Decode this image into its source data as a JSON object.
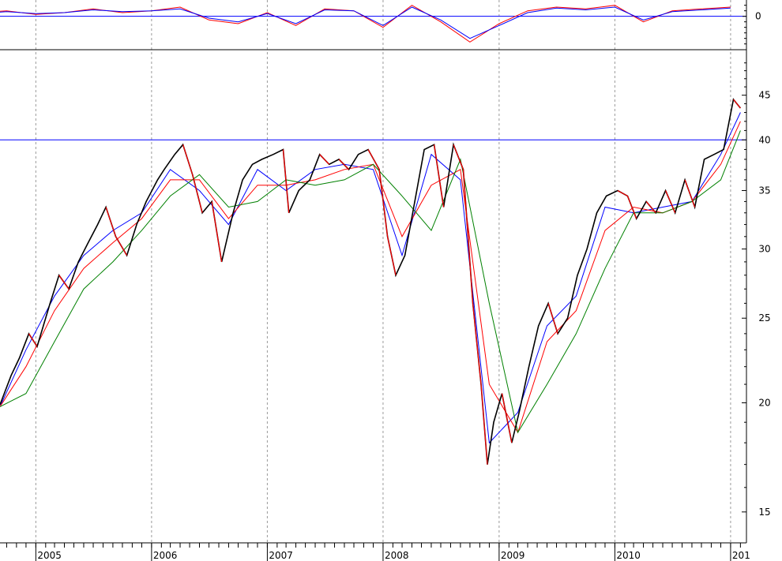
{
  "chart_data": [
    {
      "type": "line",
      "panel": "indicator",
      "title": "",
      "ylabel": "",
      "y_ticks": [
        0
      ],
      "y_tick_labels": [
        "0"
      ],
      "ylim": [
        -1.6,
        0.8
      ],
      "reference_line": 0,
      "series": [
        {
          "color": "#ff0000",
          "x": [
            "2004-07",
            "2004-10",
            "2005-01",
            "2005-04",
            "2005-07",
            "2005-10",
            "2006-01",
            "2006-04",
            "2006-07",
            "2006-10",
            "2007-01",
            "2007-04",
            "2007-07",
            "2007-10",
            "2008-01",
            "2008-04",
            "2008-07",
            "2008-10",
            "2009-01",
            "2009-04",
            "2009-07",
            "2009-10",
            "2010-01",
            "2010-04",
            "2010-07",
            "2010-10",
            "2011-01"
          ],
          "values": [
            0.2,
            0.3,
            0.1,
            0.2,
            0.4,
            0.2,
            0.3,
            0.5,
            -0.2,
            -0.4,
            0.2,
            -0.5,
            0.4,
            0.3,
            -0.6,
            0.6,
            -0.3,
            -1.4,
            -0.4,
            0.3,
            0.5,
            0.4,
            0.6,
            -0.3,
            0.3,
            0.4,
            0.5
          ]
        },
        {
          "color": "#0000ff",
          "x": [
            "2004-07",
            "2004-10",
            "2005-01",
            "2005-04",
            "2005-07",
            "2005-10",
            "2006-01",
            "2006-04",
            "2006-07",
            "2006-10",
            "2007-01",
            "2007-04",
            "2007-07",
            "2007-10",
            "2008-01",
            "2008-04",
            "2008-07",
            "2008-10",
            "2009-01",
            "2009-04",
            "2009-07",
            "2009-10",
            "2010-01",
            "2010-04",
            "2010-07",
            "2010-10",
            "2011-01"
          ],
          "values": [
            0.15,
            0.25,
            0.15,
            0.2,
            0.35,
            0.25,
            0.3,
            0.4,
            -0.1,
            -0.3,
            0.15,
            -0.4,
            0.35,
            0.3,
            -0.5,
            0.5,
            -0.2,
            -1.2,
            -0.5,
            0.2,
            0.45,
            0.35,
            0.5,
            -0.2,
            0.25,
            0.35,
            0.45
          ]
        }
      ]
    },
    {
      "type": "line",
      "panel": "price",
      "title": "",
      "xlabel": "",
      "ylabel": "",
      "y_scale": "log",
      "ylim": [
        14,
        50
      ],
      "y_ticks": [
        15,
        20,
        25,
        30,
        35,
        40,
        45
      ],
      "y_tick_labels": [
        "15",
        "20",
        "25",
        "30",
        "35",
        "40",
        "45"
      ],
      "x_tick_labels": [
        "2005",
        "2006",
        "2007",
        "2008",
        "2009",
        "2010",
        "201"
      ],
      "x_ticks": [
        "2005-01-01",
        "2006-01-01",
        "2007-01-01",
        "2008-01-01",
        "2009-01-01",
        "2010-01-01",
        "2011-01-01"
      ],
      "xlim": [
        "2004-09-10",
        "2011-02-20"
      ],
      "reference_line": 40,
      "grid": "vertical dashed at year boundaries",
      "series": [
        {
          "role": "price",
          "color": "#000000",
          "highlight_color": "#ff0000",
          "x": [
            "2004-09-10",
            "2004-10-15",
            "2004-11-10",
            "2004-12-10",
            "2005-01-05",
            "2005-02-15",
            "2005-03-15",
            "2005-04-15",
            "2005-05-15",
            "2005-06-15",
            "2005-07-15",
            "2005-08-10",
            "2005-09-10",
            "2005-10-15",
            "2005-11-15",
            "2005-12-15",
            "2006-01-20",
            "2006-02-10",
            "2006-03-15",
            "2006-04-10",
            "2006-05-10",
            "2006-06-10",
            "2006-07-10",
            "2006-08-10",
            "2006-09-15",
            "2006-10-15",
            "2006-11-15",
            "2006-12-15",
            "2007-01-20",
            "2007-02-20",
            "2007-03-10",
            "2007-04-10",
            "2007-05-15",
            "2007-06-15",
            "2007-07-15",
            "2007-08-15",
            "2007-09-15",
            "2007-10-15",
            "2007-11-15",
            "2007-12-20",
            "2008-01-15",
            "2008-02-10",
            "2008-03-10",
            "2008-04-10",
            "2008-05-10",
            "2008-06-10",
            "2008-07-10",
            "2008-08-10",
            "2008-09-10",
            "2008-10-10",
            "2008-11-05",
            "2008-11-25",
            "2008-12-15",
            "2009-01-10",
            "2009-02-10",
            "2009-03-05",
            "2009-04-05",
            "2009-05-05",
            "2009-06-05",
            "2009-07-05",
            "2009-08-05",
            "2009-09-05",
            "2009-10-05",
            "2009-11-05",
            "2009-12-05",
            "2010-01-10",
            "2010-02-10",
            "2010-03-10",
            "2010-04-10",
            "2010-05-10",
            "2010-06-10",
            "2010-07-10",
            "2010-08-10",
            "2010-09-10",
            "2010-10-10",
            "2010-11-10",
            "2010-12-10",
            "2011-01-10",
            "2011-02-01"
          ],
          "values": [
            19.9,
            21.5,
            22.5,
            24.0,
            23.2,
            26.0,
            28.0,
            27.0,
            29.0,
            30.5,
            32.0,
            33.5,
            31.0,
            29.5,
            32.0,
            34.0,
            36.0,
            37.0,
            38.5,
            39.5,
            36.5,
            33.0,
            34.0,
            29.0,
            33.0,
            36.0,
            37.5,
            38.0,
            38.5,
            39.0,
            33.0,
            35.0,
            36.0,
            38.5,
            37.5,
            38.0,
            37.0,
            38.5,
            39.0,
            37.0,
            31.0,
            28.0,
            29.5,
            34.0,
            39.0,
            39.5,
            33.5,
            39.5,
            37.0,
            26.0,
            21.0,
            17.0,
            19.0,
            20.5,
            18.0,
            19.5,
            22.0,
            24.5,
            26.0,
            24.0,
            25.0,
            28.0,
            30.0,
            33.0,
            34.5,
            35.0,
            34.5,
            32.5,
            34.0,
            33.0,
            35.0,
            33.0,
            36.0,
            33.5,
            38.0,
            38.5,
            39.0,
            44.5,
            43.5
          ]
        },
        {
          "role": "moving average",
          "color": "#0000ff",
          "x": [
            "2004-09-10",
            "2004-12-01",
            "2005-03-01",
            "2005-06-01",
            "2005-09-01",
            "2005-12-01",
            "2006-03-01",
            "2006-06-01",
            "2006-09-01",
            "2006-12-01",
            "2007-03-01",
            "2007-06-01",
            "2007-09-01",
            "2007-12-01",
            "2008-03-01",
            "2008-06-01",
            "2008-09-01",
            "2008-12-01",
            "2009-03-01",
            "2009-06-01",
            "2009-09-01",
            "2009-12-01",
            "2010-03-01",
            "2010-06-01",
            "2010-09-01",
            "2010-12-01",
            "2011-02-01"
          ],
          "values": [
            19.8,
            23.0,
            26.5,
            29.5,
            31.5,
            33.0,
            37.0,
            35.0,
            32.0,
            37.0,
            35.0,
            37.0,
            37.5,
            37.0,
            29.5,
            38.5,
            36.0,
            18.0,
            19.5,
            24.5,
            26.5,
            33.5,
            33.0,
            33.5,
            34.0,
            38.5,
            43.0
          ]
        },
        {
          "role": "moving average",
          "color": "#ff0000",
          "x": [
            "2004-09-10",
            "2004-12-01",
            "2005-03-01",
            "2005-06-01",
            "2005-09-01",
            "2005-12-01",
            "2006-03-01",
            "2006-06-01",
            "2006-09-01",
            "2006-12-01",
            "2007-03-01",
            "2007-06-01",
            "2007-09-01",
            "2007-12-01",
            "2008-03-01",
            "2008-06-01",
            "2008-09-01",
            "2008-12-01",
            "2009-03-01",
            "2009-06-01",
            "2009-09-01",
            "2009-12-01",
            "2010-03-01",
            "2010-06-01",
            "2010-09-01",
            "2010-12-01",
            "2011-02-01"
          ],
          "values": [
            19.8,
            22.0,
            25.5,
            28.5,
            30.5,
            32.5,
            36.0,
            36.0,
            32.5,
            35.5,
            35.5,
            36.0,
            37.0,
            37.5,
            31.0,
            35.5,
            37.0,
            21.0,
            18.5,
            23.5,
            25.5,
            31.5,
            33.5,
            33.0,
            34.0,
            37.5,
            42.0
          ]
        },
        {
          "role": "moving average",
          "color": "#008000",
          "x": [
            "2004-09-10",
            "2004-12-01",
            "2005-03-01",
            "2005-06-01",
            "2005-09-01",
            "2005-12-01",
            "2006-03-01",
            "2006-06-01",
            "2006-09-01",
            "2006-12-01",
            "2007-03-01",
            "2007-06-01",
            "2007-09-01",
            "2007-12-01",
            "2008-03-01",
            "2008-06-01",
            "2008-09-01",
            "2008-12-01",
            "2009-03-01",
            "2009-06-01",
            "2009-09-01",
            "2009-12-01",
            "2010-03-01",
            "2010-06-01",
            "2010-09-01",
            "2010-12-01",
            "2011-02-01"
          ],
          "values": [
            19.8,
            20.5,
            23.5,
            27.0,
            29.0,
            31.5,
            34.5,
            36.5,
            33.5,
            34.0,
            36.0,
            35.5,
            36.0,
            37.5,
            34.5,
            31.5,
            38.0,
            26.0,
            18.5,
            21.0,
            24.0,
            28.5,
            33.0,
            33.0,
            34.0,
            36.0,
            41.0
          ]
        }
      ]
    }
  ]
}
